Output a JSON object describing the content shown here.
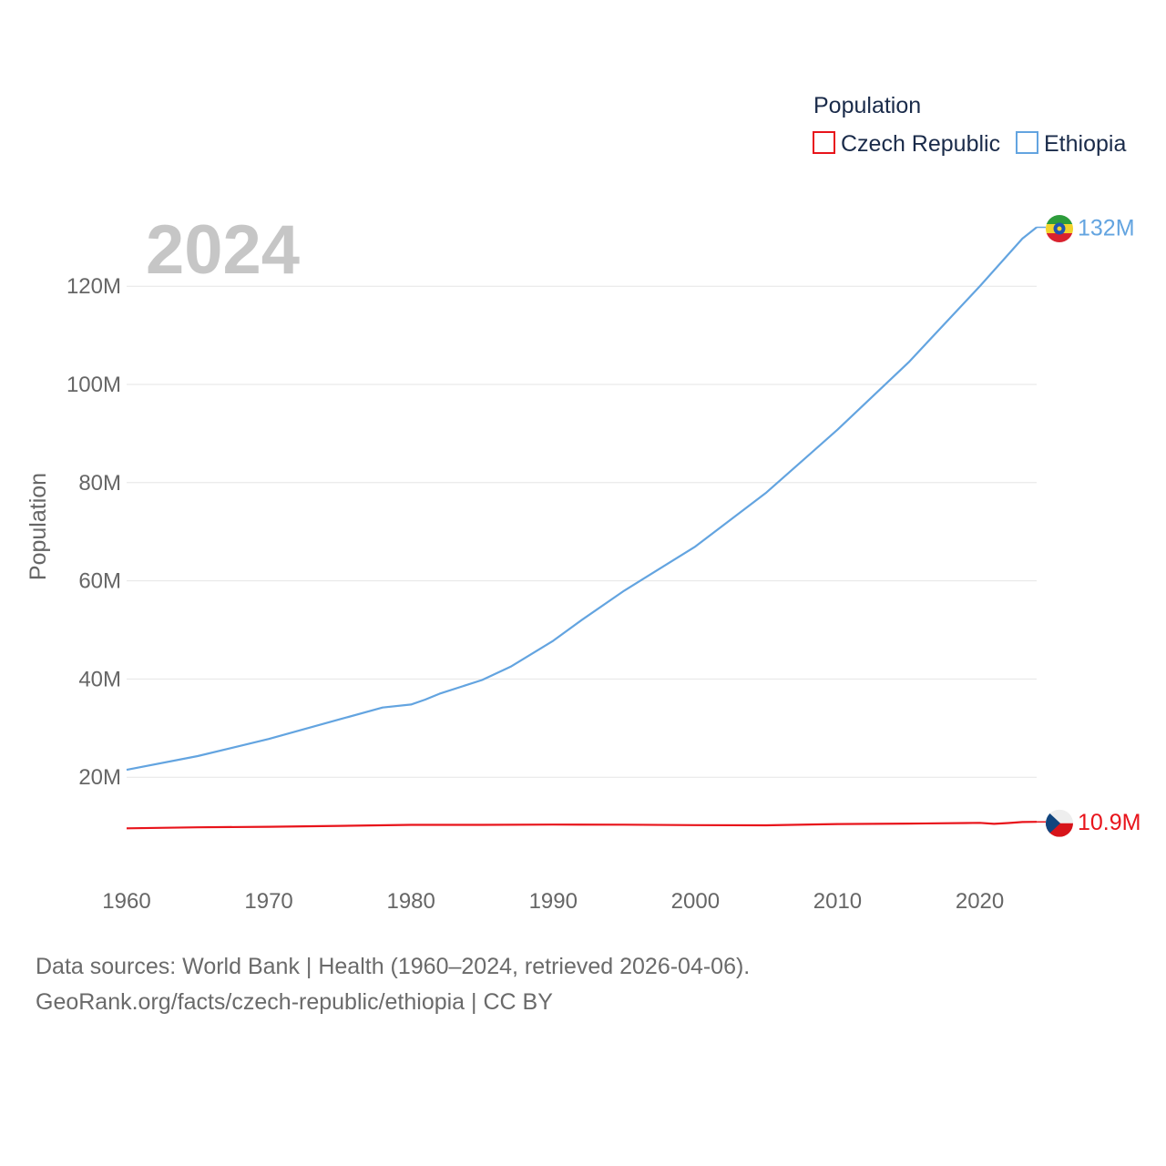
{
  "legend": {
    "title": "Population",
    "items": [
      {
        "name": "Czech Republic",
        "color": "#e8141b"
      },
      {
        "name": "Ethiopia",
        "color": "#63a4e0"
      }
    ]
  },
  "year_label": "2024",
  "footer": {
    "line1": "Data sources: World Bank | Health (1960–2024, retrieved 2026-04-06).",
    "line2": "GeoRank.org/facts/czech-republic/ethiopia | CC BY"
  },
  "chart_data": {
    "type": "line",
    "title": "Population",
    "xlabel": "",
    "ylabel": "Population",
    "xlim": [
      1960,
      2024
    ],
    "ylim": [
      0,
      132000000
    ],
    "x_ticks": [
      1960,
      1970,
      1980,
      1990,
      2000,
      2010,
      2020
    ],
    "x_tick_labels": [
      "1960",
      "1970",
      "1980",
      "1990",
      "2000",
      "2010",
      "2020"
    ],
    "y_ticks": [
      20000000,
      40000000,
      60000000,
      80000000,
      100000000,
      120000000
    ],
    "y_tick_labels": [
      "20M",
      "40M",
      "60M",
      "80M",
      "100M",
      "120M"
    ],
    "grid": true,
    "legend_position": "top-right",
    "series": [
      {
        "name": "Ethiopia",
        "color": "#63a4e0",
        "end_label": "132M",
        "points": [
          [
            1960,
            21500000
          ],
          [
            1965,
            24300000
          ],
          [
            1970,
            27800000
          ],
          [
            1975,
            31800000
          ],
          [
            1978,
            34200000
          ],
          [
            1980,
            34800000
          ],
          [
            1981,
            35800000
          ],
          [
            1982,
            37000000
          ],
          [
            1985,
            39800000
          ],
          [
            1987,
            42500000
          ],
          [
            1990,
            47800000
          ],
          [
            1992,
            52000000
          ],
          [
            1995,
            58000000
          ],
          [
            2000,
            67000000
          ],
          [
            2005,
            78000000
          ],
          [
            2010,
            90800000
          ],
          [
            2015,
            104500000
          ],
          [
            2020,
            120000000
          ],
          [
            2023,
            129700000
          ],
          [
            2024,
            132000000
          ]
        ]
      },
      {
        "name": "Czech Republic",
        "color": "#e8141b",
        "end_label": "10.9M",
        "points": [
          [
            1960,
            9600000
          ],
          [
            1965,
            9800000
          ],
          [
            1970,
            9900000
          ],
          [
            1975,
            10100000
          ],
          [
            1980,
            10300000
          ],
          [
            1985,
            10300000
          ],
          [
            1990,
            10360000
          ],
          [
            1995,
            10330000
          ],
          [
            2000,
            10250000
          ],
          [
            2005,
            10200000
          ],
          [
            2010,
            10470000
          ],
          [
            2015,
            10550000
          ],
          [
            2019,
            10670000
          ],
          [
            2020,
            10700000
          ],
          [
            2021,
            10500000
          ],
          [
            2022,
            10670000
          ],
          [
            2023,
            10870000
          ],
          [
            2024,
            10900000
          ]
        ]
      }
    ]
  }
}
